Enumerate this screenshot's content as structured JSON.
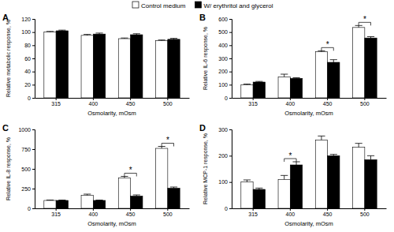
{
  "chart_data": [
    {
      "type": "bar",
      "title": "A",
      "legend": "top",
      "x_label": "Osmolarity, mOsm",
      "y_label": "Relative metabolic response, %",
      "categories": [
        "315",
        "400",
        "450",
        "500"
      ],
      "series": [
        {
          "name": "Control medium",
          "color": "#ffffff",
          "values": [
            100,
            95,
            90,
            87
          ],
          "errors": [
            1,
            1.5,
            1,
            1
          ]
        },
        {
          "name": "W/ erythritol and glycerol",
          "color": "#000000",
          "values": [
            102,
            97,
            96,
            89
          ],
          "errors": [
            1,
            1.5,
            1.5,
            1.5
          ]
        }
      ],
      "ylim": [
        0,
        120
      ],
      "yticks": [
        0,
        20,
        40,
        60,
        80,
        100,
        120
      ],
      "annotations": []
    },
    {
      "type": "bar",
      "title": "B",
      "x_label": "Osmolarity, mOsm",
      "y_label": "Relative IL-6 response, %",
      "categories": [
        "315",
        "400",
        "450",
        "500"
      ],
      "series": [
        {
          "name": "Control medium",
          "color": "#ffffff",
          "values": [
            100,
            160,
            350,
            535
          ],
          "errors": [
            5,
            20,
            8,
            15
          ]
        },
        {
          "name": "W/ erythritol and glycerol",
          "color": "#000000",
          "values": [
            120,
            148,
            270,
            455
          ],
          "errors": [
            5,
            5,
            20,
            10
          ]
        }
      ],
      "ylim": [
        0,
        600
      ],
      "yticks": [
        0,
        100,
        200,
        300,
        400,
        500,
        600
      ],
      "annotations": [
        {
          "text": "*",
          "x": "450"
        },
        {
          "text": "*",
          "x": "500"
        }
      ]
    },
    {
      "type": "bar",
      "title": "C",
      "x_label": "Osmolarity, mOsm",
      "y_label": "Relative IL-8 response, %",
      "categories": [
        "315",
        "400",
        "450",
        "500"
      ],
      "series": [
        {
          "name": "Control medium",
          "color": "#ffffff",
          "values": [
            100,
            165,
            385,
            760
          ],
          "errors": [
            5,
            15,
            20,
            25
          ]
        },
        {
          "name": "W/ erythritol and glycerol",
          "color": "#000000",
          "values": [
            100,
            100,
            155,
            255
          ],
          "errors": [
            5,
            5,
            15,
            15
          ]
        }
      ],
      "ylim": [
        0,
        1000
      ],
      "yticks": [
        0,
        250,
        500,
        750,
        1000
      ],
      "annotations": [
        {
          "text": "*",
          "x": "450"
        },
        {
          "text": "*",
          "x": "500"
        }
      ]
    },
    {
      "type": "bar",
      "title": "D",
      "x_label": "Osmolarity, mOsm",
      "y_label": "Relative MCP-1 response, %",
      "categories": [
        "315",
        "400",
        "450",
        "500"
      ],
      "series": [
        {
          "name": "Control medium",
          "color": "#ffffff",
          "values": [
            100,
            110,
            260,
            232
          ],
          "errors": [
            8,
            15,
            15,
            15
          ]
        },
        {
          "name": "W/ erythritol and glycerol",
          "color": "#000000",
          "values": [
            72,
            165,
            200,
            185
          ],
          "errors": [
            5,
            12,
            5,
            15
          ]
        }
      ],
      "ylim": [
        0,
        300
      ],
      "yticks": [
        0,
        100,
        200,
        300
      ],
      "annotations": [
        {
          "text": "*",
          "x": "400"
        }
      ]
    }
  ]
}
